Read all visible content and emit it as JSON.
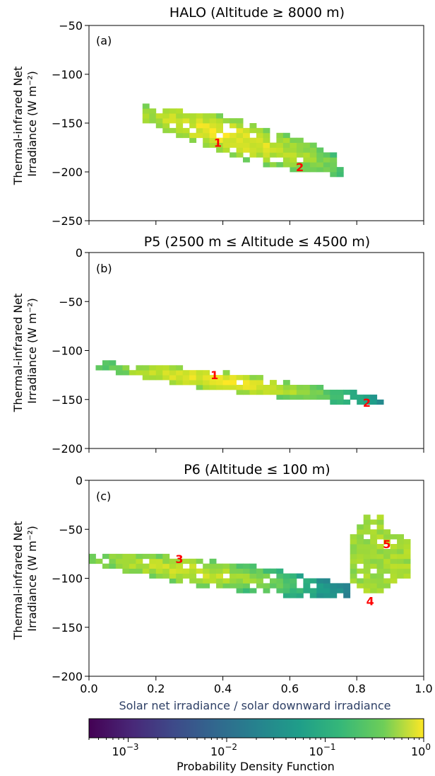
{
  "chart_data": [
    {
      "type": "heatmap",
      "panel_label": "(a)",
      "title": "HALO (Altitude ≥ 8000 m)",
      "ylabel_lines": [
        "Thermal-infrared Net",
        "Irradiance (W m⁻²)"
      ],
      "xlim": [
        0.0,
        1.0
      ],
      "ylim": [
        -250,
        -50
      ],
      "yticks": [
        -50,
        -100,
        -150,
        -200,
        -250
      ],
      "ytick_labels": [
        "−50",
        "−100",
        "−150",
        "−200",
        "−250"
      ],
      "grid": false,
      "bin_width_x": 0.02,
      "bin_height_y": 5,
      "point_labels": [
        {
          "text": "1",
          "x": 0.385,
          "y": -170
        },
        {
          "text": "2",
          "x": 0.63,
          "y": -195
        }
      ],
      "density_ridge": [
        {
          "x0": 0.16,
          "x1": 0.76,
          "ya": -143,
          "yb": -198,
          "spread": 14,
          "peak": 0.9,
          "peakx": 0.4
        }
      ]
    },
    {
      "type": "heatmap",
      "panel_label": "(b)",
      "title": "P5 (2500 m ≤ Altitude ≤ 4500 m)",
      "ylabel_lines": [
        "Thermal-infrared Net",
        "Irradiance (W m⁻²)"
      ],
      "xlim": [
        0.0,
        1.0
      ],
      "ylim": [
        -200,
        0
      ],
      "yticks": [
        0,
        -50,
        -100,
        -150,
        -200
      ],
      "ytick_labels": [
        "0",
        "−50",
        "−100",
        "−150",
        "−200"
      ],
      "grid": false,
      "bin_width_x": 0.02,
      "bin_height_y": 5,
      "point_labels": [
        {
          "text": "1",
          "x": 0.375,
          "y": -125
        },
        {
          "text": "2",
          "x": 0.83,
          "y": -153
        }
      ],
      "density_ridge": [
        {
          "x0": 0.02,
          "x1": 0.88,
          "ya": -118,
          "yb": -155,
          "spread": 7,
          "peak": 0.95,
          "peakx": 0.37
        }
      ]
    },
    {
      "type": "heatmap",
      "panel_label": "(c)",
      "title": "P6 (Altitude ≤ 100 m)",
      "ylabel_lines": [
        "Thermal-infrared Net",
        "Irradiance (W m⁻²)"
      ],
      "xlim": [
        0.0,
        1.0
      ],
      "ylim": [
        -200,
        0
      ],
      "yticks": [
        0,
        -50,
        -100,
        -150,
        -200
      ],
      "ytick_labels": [
        "0",
        "−50",
        "−100",
        "−150",
        "−200"
      ],
      "xticks": [
        0.0,
        0.2,
        0.4,
        0.6,
        0.8,
        1.0
      ],
      "xtick_labels": [
        "0.0",
        "0.2",
        "0.4",
        "0.6",
        "0.8",
        "1.0"
      ],
      "xlabel": "Solar net irradiance / solar downward irradiance",
      "grid": false,
      "bin_width_x": 0.02,
      "bin_height_y": 5,
      "point_labels": [
        {
          "text": "3",
          "x": 0.27,
          "y": -80
        },
        {
          "text": "4",
          "x": 0.84,
          "y": -123
        },
        {
          "text": "5",
          "x": 0.89,
          "y": -65
        }
      ],
      "density_ridge": [
        {
          "x0": 0.0,
          "x1": 0.8,
          "ya": -82,
          "yb": -118,
          "spread": 10,
          "peak": 0.6,
          "peakx": 0.27
        },
        {
          "x0": 0.78,
          "x1": 0.95,
          "ya": -45,
          "yb": -128,
          "spread": 0,
          "peak": 0.4,
          "peakx": 0.89,
          "vertical": true
        }
      ]
    }
  ],
  "colorbar": {
    "label": "Probability Density Function",
    "scale": "log",
    "range": [
      0.0004,
      1.0
    ],
    "colormap": "viridis",
    "ticks": [
      {
        "value": 0.001,
        "base": "10",
        "exp": "−3"
      },
      {
        "value": 0.01,
        "base": "10",
        "exp": "−2"
      },
      {
        "value": 0.1,
        "base": "10",
        "exp": "−1"
      },
      {
        "value": 1.0,
        "base": "10",
        "exp": "0"
      }
    ]
  }
}
